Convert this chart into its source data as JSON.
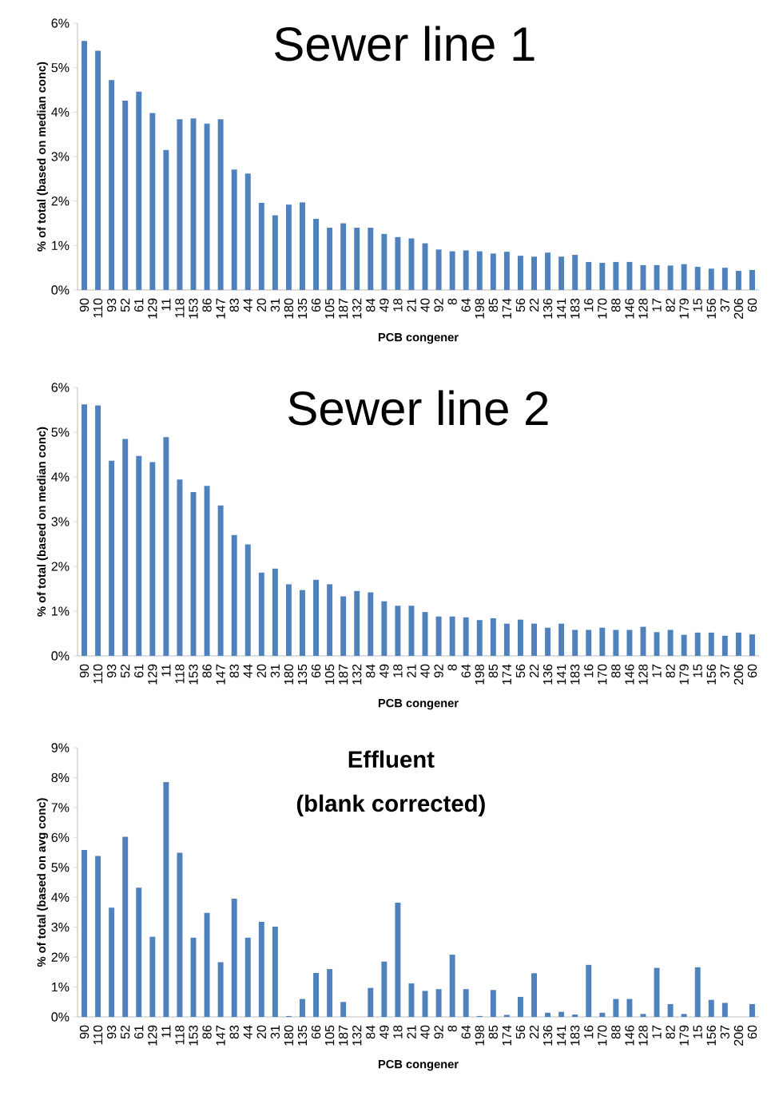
{
  "chart_data": [
    {
      "type": "bar",
      "title": "Sewer line 1",
      "xlabel": "PCB congener",
      "ylabel": "% of total (based on median conc)",
      "color": "#4f81bd",
      "categories": [
        "90",
        "110",
        "93",
        "52",
        "61",
        "129",
        "11",
        "118",
        "153",
        "86",
        "147",
        "83",
        "44",
        "20",
        "31",
        "180",
        "135",
        "66",
        "105",
        "187",
        "132",
        "84",
        "49",
        "18",
        "21",
        "40",
        "92",
        "8",
        "64",
        "198",
        "85",
        "174",
        "56",
        "22",
        "136",
        "141",
        "183",
        "16",
        "170",
        "88",
        "146",
        "128",
        "17",
        "82",
        "179",
        "15",
        "156",
        "37",
        "206",
        "60"
      ],
      "values": [
        5.6,
        5.38,
        4.72,
        4.26,
        4.46,
        3.98,
        3.15,
        3.84,
        3.86,
        3.74,
        3.84,
        2.71,
        2.62,
        1.96,
        1.68,
        1.92,
        1.97,
        1.6,
        1.4,
        1.5,
        1.4,
        1.4,
        1.26,
        1.19,
        1.16,
        1.05,
        0.91,
        0.87,
        0.89,
        0.87,
        0.82,
        0.86,
        0.77,
        0.75,
        0.84,
        0.75,
        0.79,
        0.63,
        0.61,
        0.63,
        0.63,
        0.56,
        0.56,
        0.55,
        0.58,
        0.52,
        0.48,
        0.5,
        0.43,
        0.45
      ],
      "ylim": [
        0,
        6
      ],
      "yticks": [
        {
          "value": 0,
          "label": "0%"
        },
        {
          "value": 1,
          "label": "1%"
        },
        {
          "value": 2,
          "label": "2%"
        },
        {
          "value": 3,
          "label": "3%"
        },
        {
          "value": 4,
          "label": "4%"
        },
        {
          "value": 5,
          "label": "5%"
        },
        {
          "value": 6,
          "label": "6%"
        }
      ]
    },
    {
      "type": "bar",
      "title": "Sewer line 2",
      "xlabel": "PCB congener",
      "ylabel": "% of total (based on median conc)",
      "color": "#4f81bd",
      "categories": [
        "90",
        "110",
        "93",
        "52",
        "61",
        "129",
        "11",
        "118",
        "153",
        "86",
        "147",
        "83",
        "44",
        "20",
        "31",
        "180",
        "135",
        "66",
        "105",
        "187",
        "132",
        "84",
        "49",
        "18",
        "21",
        "40",
        "92",
        "8",
        "64",
        "198",
        "85",
        "174",
        "56",
        "22",
        "136",
        "141",
        "183",
        "16",
        "170",
        "88",
        "146",
        "128",
        "17",
        "82",
        "179",
        "15",
        "156",
        "37",
        "206",
        "60"
      ],
      "values": [
        5.62,
        5.6,
        4.36,
        4.85,
        4.47,
        4.33,
        4.89,
        3.94,
        3.66,
        3.8,
        3.36,
        2.7,
        2.49,
        1.86,
        1.95,
        1.6,
        1.47,
        1.7,
        1.6,
        1.33,
        1.45,
        1.42,
        1.22,
        1.12,
        1.12,
        0.98,
        0.88,
        0.88,
        0.86,
        0.8,
        0.84,
        0.72,
        0.81,
        0.72,
        0.63,
        0.72,
        0.58,
        0.58,
        0.63,
        0.58,
        0.58,
        0.65,
        0.53,
        0.58,
        0.47,
        0.52,
        0.52,
        0.45,
        0.52,
        0.48
      ],
      "ylim": [
        0,
        6
      ],
      "yticks": [
        {
          "value": 0,
          "label": "0%"
        },
        {
          "value": 1,
          "label": "1%"
        },
        {
          "value": 2,
          "label": "2%"
        },
        {
          "value": 3,
          "label": "3%"
        },
        {
          "value": 4,
          "label": "4%"
        },
        {
          "value": 5,
          "label": "5%"
        },
        {
          "value": 6,
          "label": "6%"
        }
      ]
    },
    {
      "type": "bar",
      "title": "Effluent",
      "subtitle": "(blank corrected)",
      "xlabel": "PCB congener",
      "ylabel": "% of total (based on avg conc)",
      "color": "#4f81bd",
      "categories": [
        "90",
        "110",
        "93",
        "52",
        "61",
        "129",
        "11",
        "118",
        "153",
        "86",
        "147",
        "83",
        "44",
        "20",
        "31",
        "180",
        "135",
        "66",
        "105",
        "187",
        "132",
        "84",
        "49",
        "18",
        "21",
        "40",
        "92",
        "8",
        "64",
        "198",
        "85",
        "174",
        "56",
        "22",
        "136",
        "141",
        "183",
        "16",
        "170",
        "88",
        "146",
        "128",
        "17",
        "82",
        "179",
        "15",
        "156",
        "37",
        "206",
        "60"
      ],
      "values": [
        5.58,
        5.38,
        3.65,
        6.02,
        4.32,
        2.68,
        7.85,
        5.49,
        2.65,
        3.48,
        1.83,
        3.95,
        2.65,
        3.18,
        3.02,
        0.03,
        0.6,
        1.47,
        1.6,
        0.5,
        0,
        0.97,
        1.85,
        3.82,
        1.12,
        0.87,
        0.93,
        2.08,
        0.93,
        0.03,
        0.9,
        0.07,
        0.67,
        1.46,
        0.14,
        0.17,
        0.08,
        1.74,
        0.14,
        0.6,
        0.6,
        0.1,
        1.64,
        0.43,
        0.1,
        1.66,
        0.57,
        0.47,
        0,
        0.43
      ],
      "ylim": [
        0,
        9
      ],
      "yticks": [
        {
          "value": 0,
          "label": "0%"
        },
        {
          "value": 1,
          "label": "1%"
        },
        {
          "value": 2,
          "label": "2%"
        },
        {
          "value": 3,
          "label": "3%"
        },
        {
          "value": 4,
          "label": "4%"
        },
        {
          "value": 5,
          "label": "5%"
        },
        {
          "value": 6,
          "label": "6%"
        },
        {
          "value": 7,
          "label": "7%"
        },
        {
          "value": 8,
          "label": "8%"
        },
        {
          "value": 9,
          "label": "9%"
        }
      ]
    }
  ]
}
